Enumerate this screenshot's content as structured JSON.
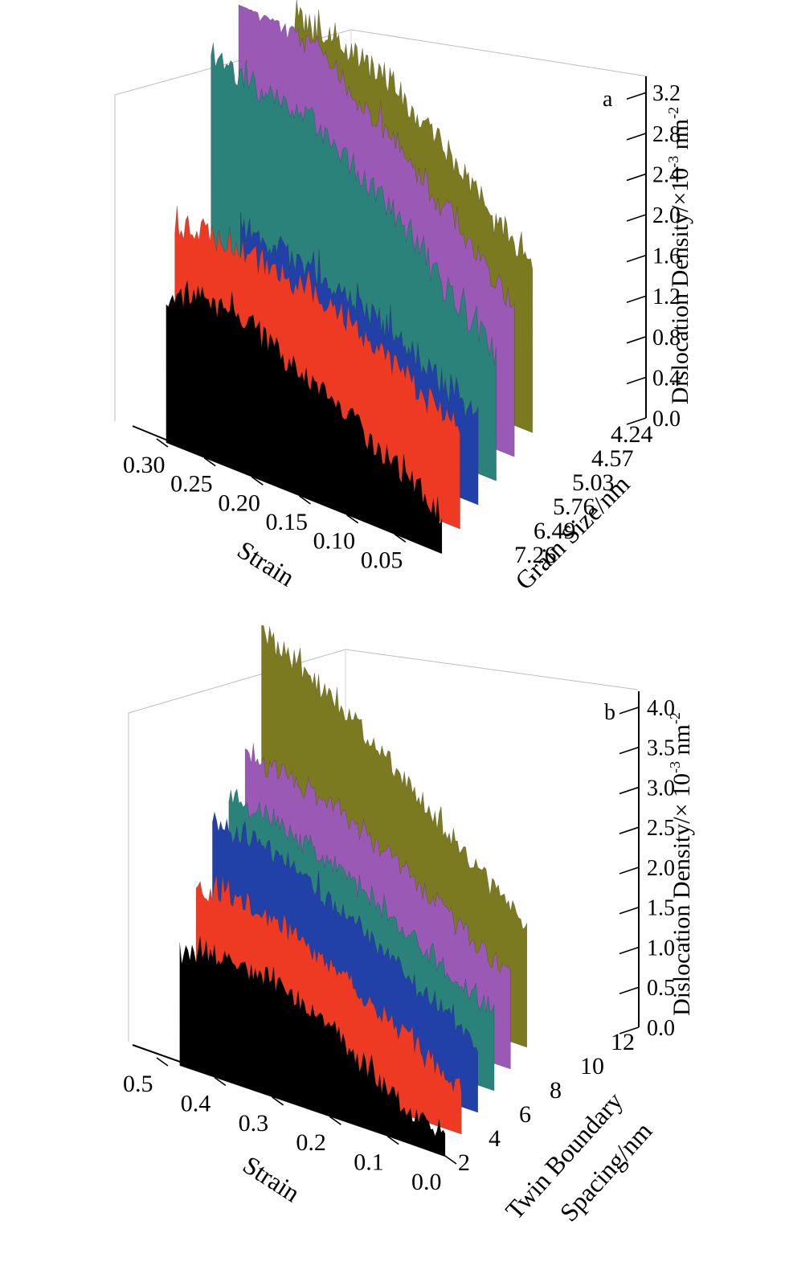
{
  "chart_data": [
    {
      "panel": "a",
      "type": "area",
      "projection": "3d-waterfall",
      "xlabel": "Strain",
      "ylabel": "Grain Size/nm",
      "zlabel_main": "Dislocation Density/×10",
      "zlabel_exp": "-3",
      "zlabel_unit": "nm",
      "zlabel_unit_exp": "-2",
      "x_range": [
        0,
        0.32
      ],
      "z_range": [
        0,
        3.4
      ],
      "x_ticks": [
        {
          "value": 0.3,
          "label": "0.30"
        },
        {
          "value": 0.25,
          "label": "0.25"
        },
        {
          "value": 0.2,
          "label": "0.20"
        },
        {
          "value": 0.15,
          "label": "0.15"
        },
        {
          "value": 0.1,
          "label": "0.10"
        },
        {
          "value": 0.05,
          "label": "0.05"
        }
      ],
      "z_ticks": [
        "0.0",
        "0.4",
        "0.8",
        "1.2",
        "1.6",
        "2.0",
        "2.4",
        "2.8",
        "3.2"
      ],
      "series": [
        {
          "name": "4.24",
          "color": "#7b7a21",
          "x": [
            0.0,
            0.05,
            0.1,
            0.15,
            0.2,
            0.25
          ],
          "values": [
            1.65,
            2.1,
            2.55,
            2.95,
            3.1,
            3.2
          ]
        },
        {
          "name": "4.57",
          "color": "#9b59b6",
          "x": [
            0.0,
            0.05,
            0.1,
            0.15,
            0.2,
            0.25,
            0.29
          ],
          "values": [
            1.5,
            1.95,
            2.45,
            2.85,
            3.2,
            3.45,
            3.55
          ]
        },
        {
          "name": "5.03",
          "color": "#2a827a",
          "x": [
            0.0,
            0.05,
            0.1,
            0.15,
            0.2,
            0.25,
            0.3
          ],
          "values": [
            1.25,
            1.7,
            2.2,
            2.55,
            2.85,
            3.0,
            3.05
          ]
        },
        {
          "name": "5.76",
          "color": "#2241a8",
          "x": [
            0.0,
            0.05,
            0.1,
            0.15,
            0.2,
            0.25
          ],
          "values": [
            0.85,
            1.15,
            1.45,
            1.6,
            1.75,
            1.85
          ]
        },
        {
          "name": "6.49",
          "color": "#ee3a23",
          "x": [
            0.0,
            0.05,
            0.1,
            0.15,
            0.2,
            0.25,
            0.3
          ],
          "values": [
            1.05,
            1.25,
            1.55,
            1.75,
            1.85,
            1.9,
            1.9
          ]
        },
        {
          "name": "7.26",
          "color": "#000000",
          "x": [
            0.0,
            0.05,
            0.1,
            0.15,
            0.2,
            0.25,
            0.29
          ],
          "values": [
            0.4,
            0.7,
            1.0,
            1.25,
            1.5,
            1.6,
            1.4
          ]
        }
      ]
    },
    {
      "panel": "b",
      "type": "area",
      "projection": "3d-waterfall",
      "xlabel": "Strain",
      "ylabel_line1": "Twin Boundary",
      "ylabel_line2": "Spacing/nm",
      "zlabel_main": "Dislocation Density/× 10",
      "zlabel_exp": "-3",
      "zlabel_unit": "nm",
      "zlabel_unit_exp": "-2",
      "x_range": [
        0,
        0.5
      ],
      "z_range": [
        0,
        4.4
      ],
      "x_ticks": [
        {
          "value": 0.5,
          "label": "0.5"
        },
        {
          "value": 0.4,
          "label": "0.4"
        },
        {
          "value": 0.3,
          "label": "0.3"
        },
        {
          "value": 0.2,
          "label": "0.2"
        },
        {
          "value": 0.1,
          "label": "0.1"
        },
        {
          "value": 0.0,
          "label": "0.0"
        }
      ],
      "y_ticks": [
        "2",
        "4",
        "6",
        "8",
        "10",
        "12"
      ],
      "z_ticks": [
        "0.0",
        "0.5",
        "1.0",
        "1.5",
        "2.0",
        "2.5",
        "3.0",
        "3.5",
        "4.0"
      ],
      "series": [
        {
          "name": "12",
          "color": "#7b7a21",
          "x": [
            0.0,
            0.1,
            0.2,
            0.3,
            0.4,
            0.46
          ],
          "values": [
            1.6,
            2.2,
            2.9,
            3.5,
            4.0,
            4.3
          ]
        },
        {
          "name": "10",
          "color": "#9b59b6",
          "x": [
            0.0,
            0.1,
            0.2,
            0.3,
            0.4,
            0.46
          ],
          "values": [
            1.2,
            1.7,
            2.2,
            2.6,
            2.85,
            2.9
          ]
        },
        {
          "name": "8",
          "color": "#2a827a",
          "x": [
            0.0,
            0.1,
            0.2,
            0.3,
            0.4,
            0.46
          ],
          "values": [
            1.0,
            1.45,
            1.9,
            2.3,
            2.6,
            2.7
          ]
        },
        {
          "name": "6",
          "color": "#2241a8",
          "x": [
            0.0,
            0.1,
            0.2,
            0.3,
            0.4,
            0.46
          ],
          "values": [
            0.9,
            1.35,
            1.9,
            2.3,
            2.6,
            2.65
          ]
        },
        {
          "name": "4",
          "color": "#ee3a23",
          "x": [
            0.0,
            0.1,
            0.2,
            0.3,
            0.4,
            0.46
          ],
          "values": [
            0.6,
            1.05,
            1.55,
            1.9,
            2.1,
            2.0
          ]
        },
        {
          "name": "2",
          "color": "#000000",
          "x": [
            0.0,
            0.05,
            0.1,
            0.2,
            0.3,
            0.4,
            0.46
          ],
          "values": [
            0.3,
            0.35,
            0.6,
            1.2,
            1.55,
            1.6,
            1.5
          ]
        }
      ]
    }
  ]
}
